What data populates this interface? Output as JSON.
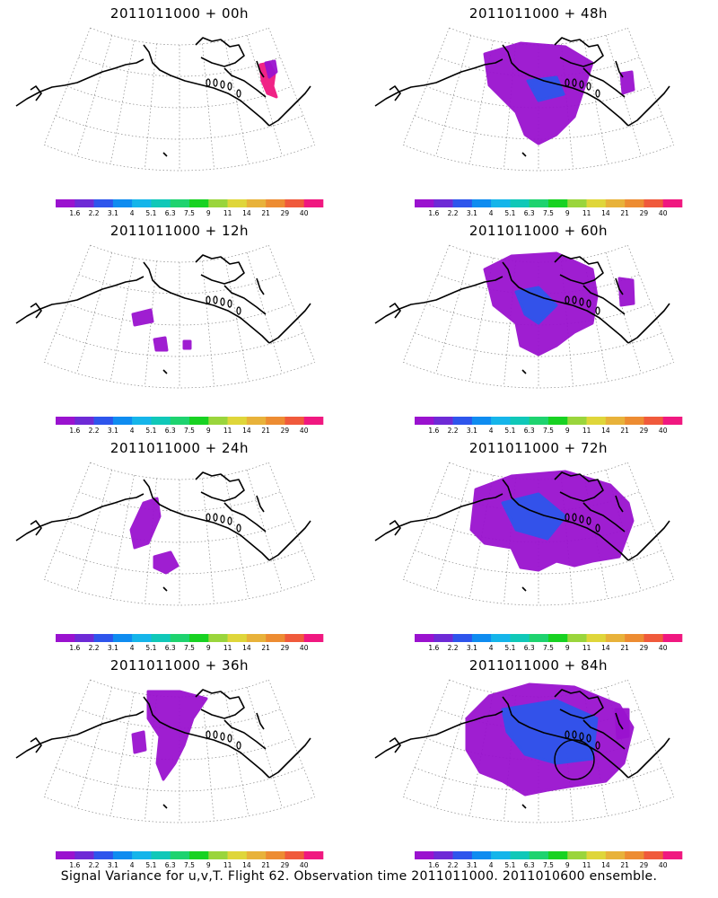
{
  "colorbar": {
    "labels": [
      "1.6",
      "2.2",
      "3.1",
      "4",
      "5.1",
      "6.3",
      "7.5",
      "9",
      "11",
      "14",
      "21",
      "29",
      "40"
    ],
    "colors": [
      "#9a12cf",
      "#6e2ad6",
      "#2e55ec",
      "#0f8cf0",
      "#15b5ea",
      "#10c8b8",
      "#1ed36f",
      "#18d222",
      "#9ad53c",
      "#dfd63a",
      "#e8b23a",
      "#ed8c32",
      "#f05a3c",
      "#f01880"
    ]
  },
  "panels": [
    {
      "title": "2011011000 + 00h"
    },
    {
      "title": "2011011000 + 48h"
    },
    {
      "title": "2011011000 + 12h"
    },
    {
      "title": "2011011000 + 60h"
    },
    {
      "title": "2011011000 + 24h"
    },
    {
      "title": "2011011000 + 72h"
    },
    {
      "title": "2011011000 + 36h"
    },
    {
      "title": "2011011000 + 84h"
    }
  ],
  "footer": "Signal Variance for u,v,T. Flight 62. Observation time 2011011000. 2011010600 ensemble."
}
